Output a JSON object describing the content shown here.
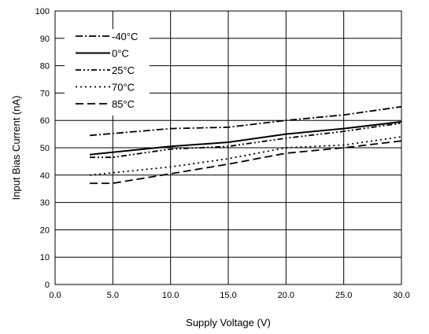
{
  "chart_data": {
    "type": "line",
    "title": "",
    "xlabel": "Supply Voltage (V)",
    "ylabel": "Input Bias Current (nA)",
    "xlim": [
      0,
      30
    ],
    "ylim": [
      0,
      100
    ],
    "x_ticks": [
      "0.0",
      "5.0",
      "10.0",
      "15.0",
      "20.0",
      "25.0",
      "30.0"
    ],
    "y_ticks": [
      "0",
      "10",
      "20",
      "30",
      "40",
      "50",
      "60",
      "70",
      "80",
      "90",
      "100"
    ],
    "grid": true,
    "legend_position": "top-left",
    "series": [
      {
        "name": "-40°C",
        "style": "dash-dot",
        "x": [
          3,
          10,
          15,
          20,
          25,
          30
        ],
        "y": [
          54.5,
          57,
          57.5,
          60,
          62,
          65
        ]
      },
      {
        "name": "0°C",
        "style": "solid",
        "x": [
          3,
          10,
          15,
          20,
          25,
          30
        ],
        "y": [
          47.5,
          50.5,
          52,
          55,
          57,
          59.5
        ]
      },
      {
        "name": "25°C",
        "style": "dash-dot-dot",
        "x": [
          3,
          5,
          10,
          15,
          20,
          25,
          30
        ],
        "y": [
          46.5,
          46.5,
          49.5,
          50.5,
          53.5,
          56,
          59
        ]
      },
      {
        "name": "70°C",
        "style": "dotted",
        "x": [
          3,
          10,
          15,
          20,
          25,
          30
        ],
        "y": [
          40,
          43,
          46,
          50,
          51,
          54
        ]
      },
      {
        "name": "85°C",
        "style": "dashed",
        "x": [
          3,
          5,
          10,
          15,
          20,
          25,
          30
        ],
        "y": [
          37,
          37,
          40.5,
          44,
          48,
          50,
          52.5
        ]
      }
    ]
  }
}
